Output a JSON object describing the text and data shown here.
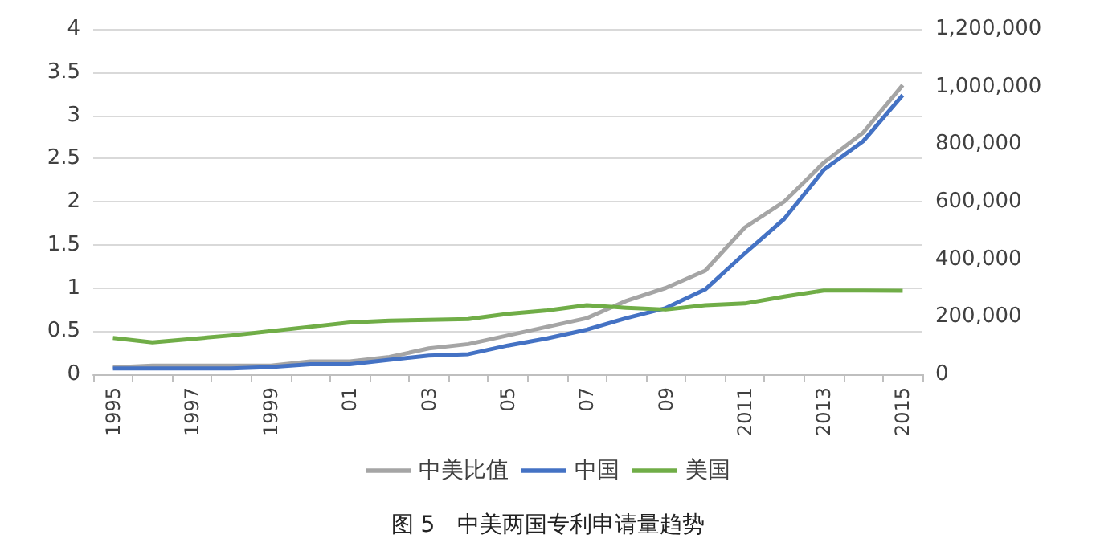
{
  "chart_data": {
    "type": "line",
    "title": "图 5　中美两国专利申请量趋势",
    "categories": [
      "1995",
      null,
      "1997",
      null,
      "1999",
      null,
      "01",
      null,
      "03",
      null,
      "05",
      null,
      "07",
      null,
      "09",
      null,
      "2011",
      null,
      "2013",
      null,
      "2015"
    ],
    "series": [
      {
        "name": "中美比值",
        "color": "#a5a5a5",
        "values": [
          0.08,
          0.1,
          0.1,
          0.1,
          0.1,
          0.15,
          0.15,
          0.2,
          0.3,
          0.35,
          0.45,
          0.55,
          0.65,
          0.85,
          1.0,
          1.2,
          1.7,
          2.0,
          2.45,
          2.8,
          3.35
        ]
      },
      {
        "name": "中国",
        "color": "#4472c4",
        "axis": "y2",
        "values": [
          20000,
          20000,
          20000,
          20000,
          25000,
          35000,
          35000,
          50000,
          65000,
          70000,
          100000,
          125000,
          155000,
          195000,
          230000,
          295000,
          420000,
          540000,
          710000,
          810000,
          970000
        ]
      },
      {
        "name": "美国",
        "color": "#70ad47",
        "axis": "y2",
        "values": [
          126000,
          111000,
          123000,
          135000,
          150000,
          165000,
          180000,
          186000,
          189000,
          192000,
          210000,
          222000,
          240000,
          231000,
          225000,
          240000,
          246000,
          270000,
          291000,
          291000,
          290000
        ]
      }
    ],
    "ylim": [
      0,
      4
    ],
    "yticks": [
      0,
      0.5,
      1,
      1.5,
      2,
      2.5,
      3,
      3.5,
      4
    ],
    "y2lim": [
      0,
      1200000
    ],
    "y2ticks": [
      0,
      {
        "value": 200000,
        "label": "200,000"
      },
      {
        "value": 400000,
        "label": "400,000"
      },
      {
        "value": 600000,
        "label": "600,000"
      },
      {
        "value": 800000,
        "label": "800,000"
      },
      {
        "value": 1000000,
        "label": "1,000,000"
      },
      {
        "value": 1200000,
        "label": "1,200,000"
      }
    ],
    "grid": "y",
    "legend": "bottom",
    "marker": "none"
  }
}
